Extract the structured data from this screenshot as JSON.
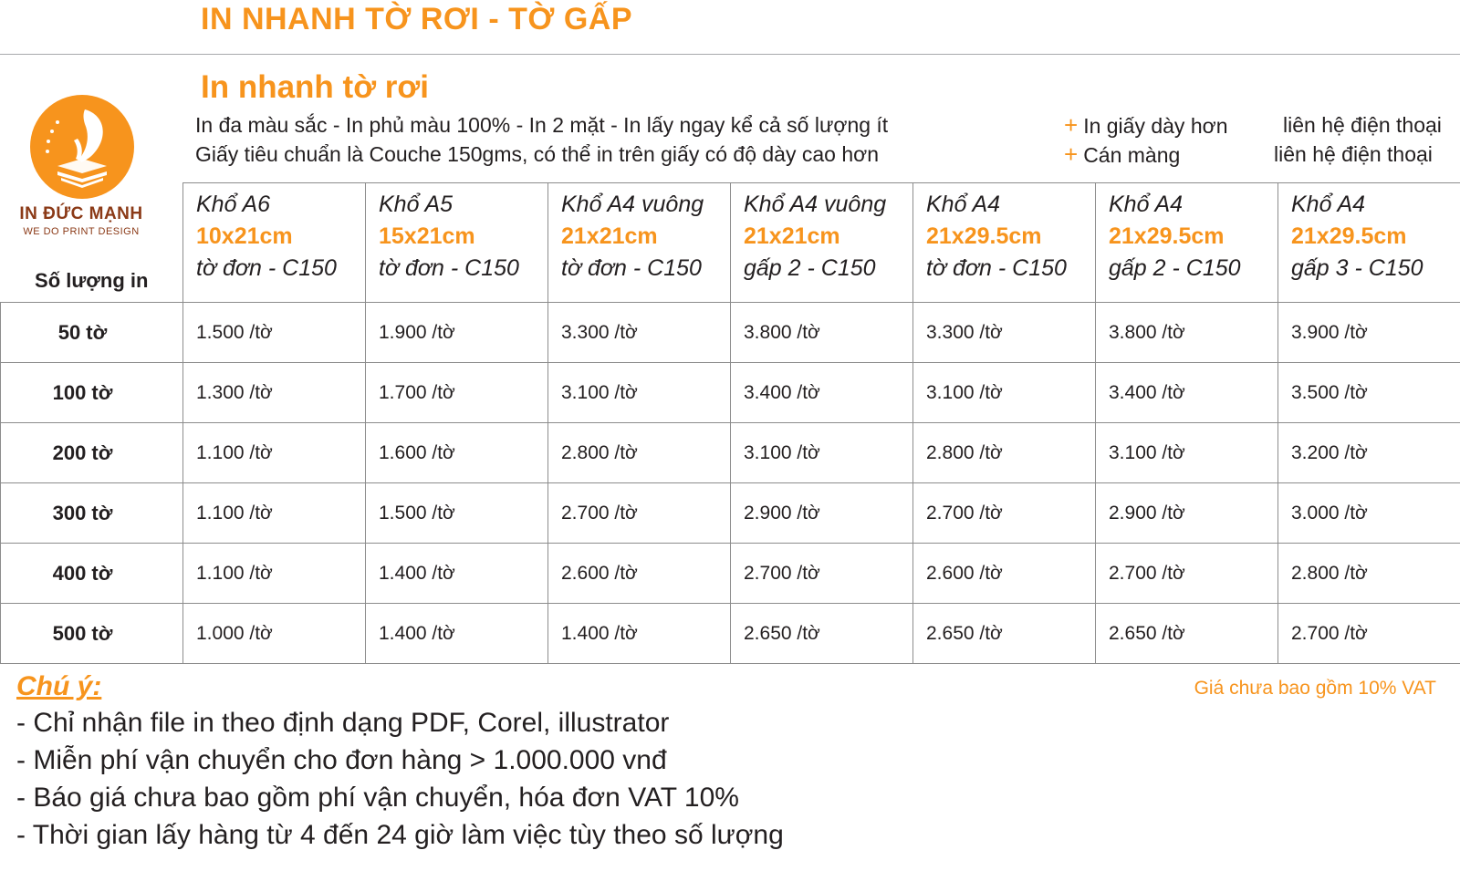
{
  "header": {
    "title": "IN NHANH TỜ RƠI - TỜ GẤP",
    "section_title": "In nhanh tờ rơi"
  },
  "description": {
    "line1": "In đa màu sắc - In phủ màu 100% - In 2 mặt - In lấy ngay kể cả số lượng ít",
    "line2": "Giấy tiêu chuẩn là Couche 150gms, có thể in trên giấy có độ dày cao hơn"
  },
  "options": [
    {
      "plus": "+",
      "label": "In giấy dày hơn",
      "contact": "liên hệ điện thoại"
    },
    {
      "plus": "+",
      "label": "Cán màng",
      "contact": "liên hệ điện thoại"
    }
  ],
  "logo": {
    "name": "IN ĐỨC MẠNH",
    "tagline": "WE DO PRINT DESIGN",
    "icon": "quill-pen-book-stars-icon",
    "color": "#f7941d"
  },
  "table": {
    "qty_header": "Số lượng in",
    "columns": [
      {
        "name": "Khổ A6",
        "size": "10x21cm",
        "type": "tờ đơn - C150"
      },
      {
        "name": "Khổ A5",
        "size": "15x21cm",
        "type": "tờ đơn - C150"
      },
      {
        "name": "Khổ A4 vuông",
        "size": "21x21cm",
        "type": "tờ đơn - C150"
      },
      {
        "name": "Khổ A4 vuông",
        "size": "21x21cm",
        "type": "gấp 2 - C150"
      },
      {
        "name": "Khổ A4",
        "size": "21x29.5cm",
        "type": "tờ đơn - C150"
      },
      {
        "name": "Khổ A4",
        "size": "21x29.5cm",
        "type": "gấp 2 - C150"
      },
      {
        "name": "Khổ A4",
        "size": "21x29.5cm",
        "type": "gấp 3 - C150"
      }
    ],
    "rows": [
      {
        "qty": "50 tờ",
        "prices": [
          "1.500 /tờ",
          "1.900 /tờ",
          "3.300 /tờ",
          "3.800 /tờ",
          "3.300 /tờ",
          "3.800 /tờ",
          "3.900 /tờ"
        ]
      },
      {
        "qty": "100 tờ",
        "prices": [
          "1.300 /tờ",
          "1.700 /tờ",
          "3.100 /tờ",
          "3.400 /tờ",
          "3.100 /tờ",
          "3.400 /tờ",
          "3.500 /tờ"
        ]
      },
      {
        "qty": "200 tờ",
        "prices": [
          "1.100 /tờ",
          "1.600 /tờ",
          "2.800 /tờ",
          "3.100 /tờ",
          "2.800 /tờ",
          "3.100 /tờ",
          "3.200 /tờ"
        ]
      },
      {
        "qty": "300 tờ",
        "prices": [
          "1.100 /tờ",
          "1.500 /tờ",
          "2.700 /tờ",
          "2.900 /tờ",
          "2.700 /tờ",
          "2.900 /tờ",
          "3.000 /tờ"
        ]
      },
      {
        "qty": "400 tờ",
        "prices": [
          "1.100 /tờ",
          "1.400 /tờ",
          "2.600 /tờ",
          "2.700 /tờ",
          "2.600 /tờ",
          "2.700 /tờ",
          "2.800 /tờ"
        ]
      },
      {
        "qty": "500 tờ",
        "prices": [
          "1.000 /tờ",
          "1.400 /tờ",
          "1.400 /tờ",
          "2.650 /tờ",
          "2.650 /tờ",
          "2.650 /tờ",
          "2.700 /tờ"
        ]
      }
    ]
  },
  "notes": {
    "title": "Chú ý:",
    "vat": "Giá chưa bao gồm 10% VAT",
    "items": [
      "- Chỉ nhận file in theo định dạng PDF, Corel, illustrator",
      "- Miễn phí vận chuyển cho đơn hàng > 1.000.000 vnđ",
      "- Báo giá chưa bao gồm phí vận chuyển, hóa đơn VAT 10%",
      "- Thời gian lấy hàng từ 4 đến 24 giờ làm việc tùy theo số lượng"
    ]
  },
  "colors": {
    "accent": "#f7941d",
    "text": "#231f20",
    "brand_dark": "#8b3a17"
  }
}
